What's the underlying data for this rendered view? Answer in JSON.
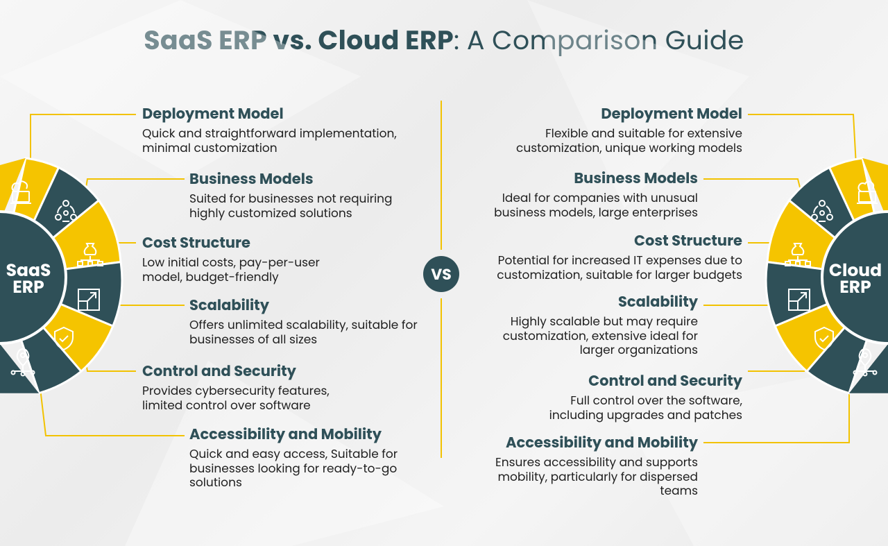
{
  "title": {
    "bold": "SaaS ERP vs. Cloud ERP",
    "light": ": A Comparison Guide"
  },
  "vs": "VS",
  "left": {
    "hub_line1": "SaaS",
    "hub_line2": "ERP",
    "items": [
      {
        "heading": "Deployment Model",
        "text": "Quick and straightforward implementation, minimal customization"
      },
      {
        "heading": "Business Models",
        "text": "Suited for businesses not requiring highly customized solutions"
      },
      {
        "heading": "Cost Structure",
        "text": "Low initial costs, pay-per-user model, budget-friendly"
      },
      {
        "heading": "Scalability",
        "text": "Offers unlimited scalability, suitable for businesses of all sizes"
      },
      {
        "heading": "Control and Security",
        "text": "Provides cybersecurity features, limited control over software"
      },
      {
        "heading": "Accessibility and Mobility",
        "text": "Quick and easy access, Suitable for businesses looking for ready-to-go solutions"
      }
    ]
  },
  "right": {
    "hub_line1": "Cloud",
    "hub_line2": "ERP",
    "items": [
      {
        "heading": "Deployment Model",
        "text": "Flexible and suitable for extensive customization, unique working models"
      },
      {
        "heading": "Business Models",
        "text": "Ideal for companies with unusual business models, large enterprises"
      },
      {
        "heading": "Cost Structure",
        "text": "Potential for increased IT expenses due to customization, suitable for larger budgets"
      },
      {
        "heading": "Scalability",
        "text": "Highly scalable but may require customization, extensive ideal for larger organizations"
      },
      {
        "heading": "Control and Security",
        "text": "Full control over the software, including upgrades and patches"
      },
      {
        "heading": "Accessibility and Mobility",
        "text": "Ensures accessibility and supports mobility, particularly for dispersed teams"
      }
    ]
  },
  "icons": [
    "cloud-laptop-icon",
    "people-cycle-icon",
    "money-bag-network-icon",
    "expand-icon",
    "shield-check-icon",
    "location-network-icon"
  ],
  "colors": {
    "teal": "#2f5058",
    "yellow": "#f5c400",
    "line": "#f2c200"
  }
}
